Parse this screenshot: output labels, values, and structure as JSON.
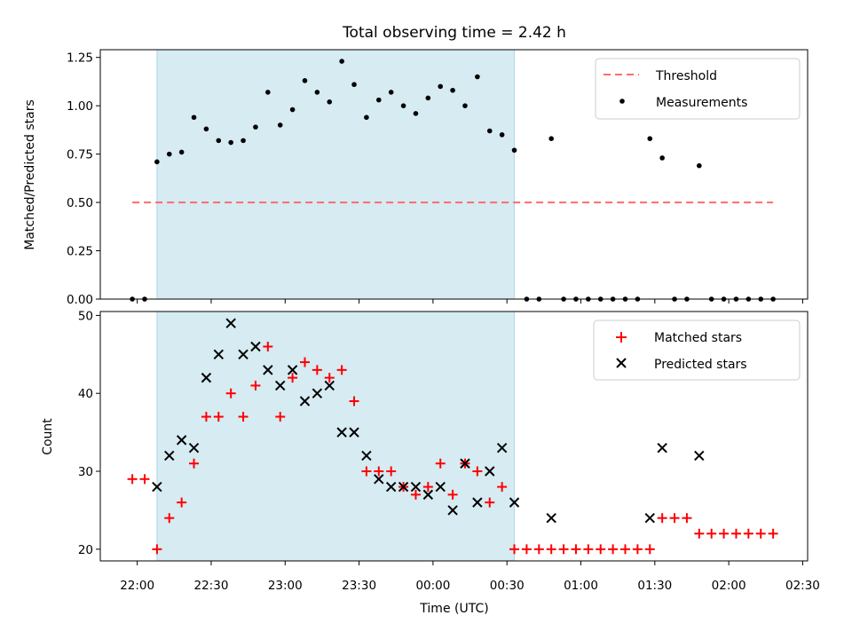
{
  "title": "Total observing time = 2.42 h",
  "colors": {
    "shade": "#add8e6",
    "threshold": "#ff6b6b",
    "measurement": "#000000",
    "matched": "#ff0000",
    "predicted": "#000000"
  },
  "chart_data": [
    {
      "type": "scatter",
      "ylabel": "Matched/Predicted stars",
      "xlim": [
        "21:45",
        "02:32"
      ],
      "ylim": [
        0,
        1.29
      ],
      "y_ticks": [
        "0.00",
        "0.25",
        "0.50",
        "0.75",
        "1.00",
        "1.25"
      ],
      "shaded_interval": [
        "22:08",
        "00:33"
      ],
      "legend_position": "upper right",
      "threshold": {
        "name": "Threshold",
        "y": 0.5,
        "x_start": "21:58",
        "x_end": "02:18"
      },
      "series": [
        {
          "name": "Measurements",
          "x": [
            "21:58",
            "22:03",
            "22:08",
            "22:13",
            "22:18",
            "22:23",
            "22:28",
            "22:33",
            "22:38",
            "22:43",
            "22:48",
            "22:53",
            "22:58",
            "23:03",
            "23:08",
            "23:13",
            "23:18",
            "23:23",
            "23:28",
            "23:33",
            "23:38",
            "23:43",
            "23:48",
            "23:53",
            "23:58",
            "00:03",
            "00:08",
            "00:13",
            "00:18",
            "00:23",
            "00:28",
            "00:33",
            "00:38",
            "00:43",
            "00:48",
            "00:53",
            "00:58",
            "01:03",
            "01:08",
            "01:13",
            "01:18",
            "01:23",
            "01:28",
            "01:33",
            "01:38",
            "01:43",
            "01:48",
            "01:53",
            "01:58",
            "02:03",
            "02:08",
            "02:13",
            "02:18"
          ],
          "y": [
            0.0,
            0.0,
            0.71,
            0.75,
            0.76,
            0.94,
            0.88,
            0.82,
            0.81,
            0.82,
            0.89,
            1.07,
            0.9,
            0.98,
            1.13,
            1.07,
            1.02,
            1.23,
            1.11,
            0.94,
            1.03,
            1.07,
            1.0,
            0.96,
            1.04,
            1.1,
            1.08,
            1.0,
            1.15,
            0.87,
            0.85,
            0.77,
            0.0,
            0.0,
            0.83,
            0.0,
            0.0,
            0.0,
            0.0,
            0.0,
            0.0,
            0.0,
            0.83,
            0.73,
            0.0,
            0.0,
            0.69,
            0.0,
            0.0,
            0.0,
            0.0,
            0.0,
            0.0
          ]
        }
      ]
    },
    {
      "type": "scatter",
      "xlabel": "Time (UTC)",
      "ylabel": "Count",
      "xlim": [
        "21:45",
        "02:32"
      ],
      "ylim": [
        18.5,
        50.5
      ],
      "y_ticks": [
        "20",
        "30",
        "40",
        "50"
      ],
      "x_ticks": [
        "22:00",
        "22:30",
        "23:00",
        "23:30",
        "00:00",
        "00:30",
        "01:00",
        "01:30",
        "02:00",
        "02:30"
      ],
      "shaded_interval": [
        "22:08",
        "00:33"
      ],
      "legend_position": "upper right",
      "series": [
        {
          "name": "Matched stars",
          "marker": "+",
          "x": [
            "21:58",
            "22:03",
            "22:08",
            "22:13",
            "22:18",
            "22:23",
            "22:28",
            "22:33",
            "22:38",
            "22:43",
            "22:48",
            "22:53",
            "22:58",
            "23:03",
            "23:08",
            "23:13",
            "23:18",
            "23:23",
            "23:28",
            "23:33",
            "23:38",
            "23:43",
            "23:48",
            "23:53",
            "23:58",
            "00:03",
            "00:08",
            "00:13",
            "00:18",
            "00:23",
            "00:28",
            "00:33",
            "00:38",
            "00:43",
            "00:48",
            "00:53",
            "00:58",
            "01:03",
            "01:08",
            "01:13",
            "01:18",
            "01:23",
            "01:28",
            "01:33",
            "01:38",
            "01:43",
            "01:48",
            "01:53",
            "01:58",
            "02:03",
            "02:08",
            "02:13",
            "02:18"
          ],
          "y": [
            29,
            29,
            20,
            24,
            26,
            31,
            37,
            37,
            40,
            37,
            41,
            46,
            37,
            42,
            44,
            43,
            42,
            43,
            39,
            30,
            30,
            30,
            28,
            27,
            28,
            31,
            27,
            31,
            30,
            26,
            28,
            20,
            20,
            20,
            20,
            20,
            20,
            20,
            20,
            20,
            20,
            20,
            20,
            24,
            24,
            24,
            22,
            22,
            22,
            22,
            22,
            22,
            22
          ]
        },
        {
          "name": "Predicted stars",
          "marker": "x",
          "x": [
            "22:08",
            "22:13",
            "22:18",
            "22:23",
            "22:28",
            "22:33",
            "22:38",
            "22:43",
            "22:48",
            "22:53",
            "22:58",
            "23:03",
            "23:08",
            "23:13",
            "23:18",
            "23:23",
            "23:28",
            "23:33",
            "23:38",
            "23:43",
            "23:48",
            "23:53",
            "23:58",
            "00:03",
            "00:08",
            "00:13",
            "00:18",
            "00:23",
            "00:28",
            "00:33",
            "00:48",
            "01:28",
            "01:33",
            "01:48"
          ],
          "y": [
            28,
            32,
            34,
            33,
            42,
            45,
            49,
            45,
            46,
            43,
            41,
            43,
            39,
            40,
            41,
            35,
            35,
            32,
            29,
            28,
            28,
            28,
            27,
            28,
            25,
            31,
            26,
            30,
            33,
            26,
            24,
            24,
            33,
            32
          ]
        }
      ]
    }
  ]
}
